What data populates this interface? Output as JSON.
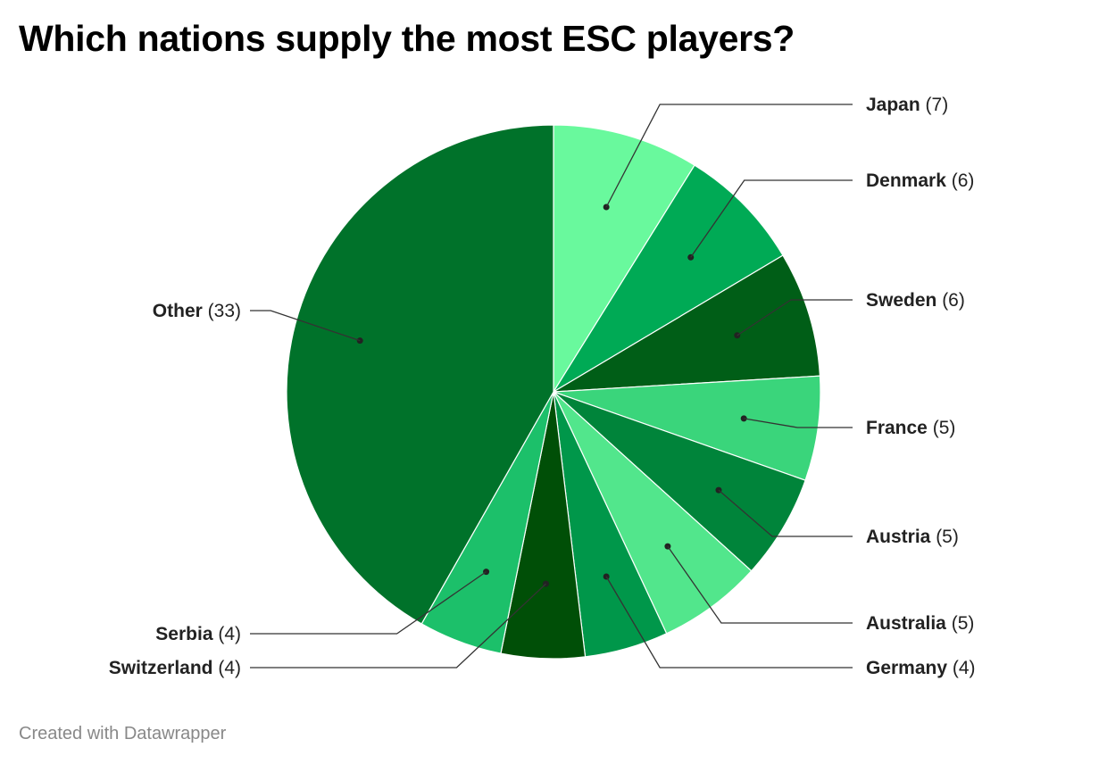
{
  "title": "Which nations supply the most ESC players?",
  "credit": "Created with Datawrapper",
  "chart_data": {
    "type": "pie",
    "title": "Which nations supply the most ESC players?",
    "start_angle_deg": 0,
    "direction": "clockwise",
    "slices": [
      {
        "label": "Japan",
        "value": 7,
        "color": "#69f99d",
        "side": "right"
      },
      {
        "label": "Denmark",
        "value": 6,
        "color": "#00aa55",
        "side": "right"
      },
      {
        "label": "Sweden",
        "value": 6,
        "color": "#005e17",
        "side": "right"
      },
      {
        "label": "France",
        "value": 5,
        "color": "#3ad57b",
        "side": "right"
      },
      {
        "label": "Austria",
        "value": 5,
        "color": "#00843a",
        "side": "right"
      },
      {
        "label": "Australia",
        "value": 5,
        "color": "#52e68c",
        "side": "right"
      },
      {
        "label": "Germany",
        "value": 4,
        "color": "#00974a",
        "side": "right"
      },
      {
        "label": "Switzerland",
        "value": 4,
        "color": "#004f07",
        "side": "left"
      },
      {
        "label": "Serbia",
        "value": 4,
        "color": "#1cc06a",
        "side": "left"
      },
      {
        "label": "Other",
        "value": 33,
        "color": "#00722a",
        "side": "left"
      }
    ]
  }
}
